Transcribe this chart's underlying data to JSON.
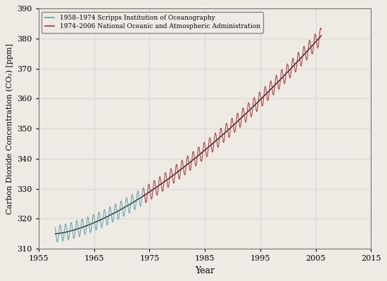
{
  "ylabel": "Carbon Dioxide Concentration (CO₂) [ppm]",
  "xlabel": "Year",
  "xlim": [
    1955,
    2015
  ],
  "ylim": [
    310,
    390
  ],
  "xticks": [
    1955,
    1965,
    1975,
    1985,
    1995,
    2005,
    2015
  ],
  "yticks": [
    310,
    320,
    330,
    340,
    350,
    360,
    370,
    380,
    390
  ],
  "legend_line1": "1958–1974 Scripps Institution of Oceanography",
  "legend_line2": "1974–2006 National Oceanic and Atmospheric Administration",
  "color_scripps": "#5b9ea6",
  "color_noaa": "#b03030",
  "color_trend": "#1a1a1a",
  "background_color": "#eeebe4",
  "grid_color": "#d8d8d8",
  "scripps_start_year": 1958,
  "scripps_end_year": 1974,
  "noaa_start_year": 1974,
  "noaa_end_year": 2006,
  "co2_1958": 315.0,
  "co2_1974": 330.0,
  "co2_2006": 381.0,
  "seasonal_amplitude": 2.8,
  "points_per_year": 24
}
